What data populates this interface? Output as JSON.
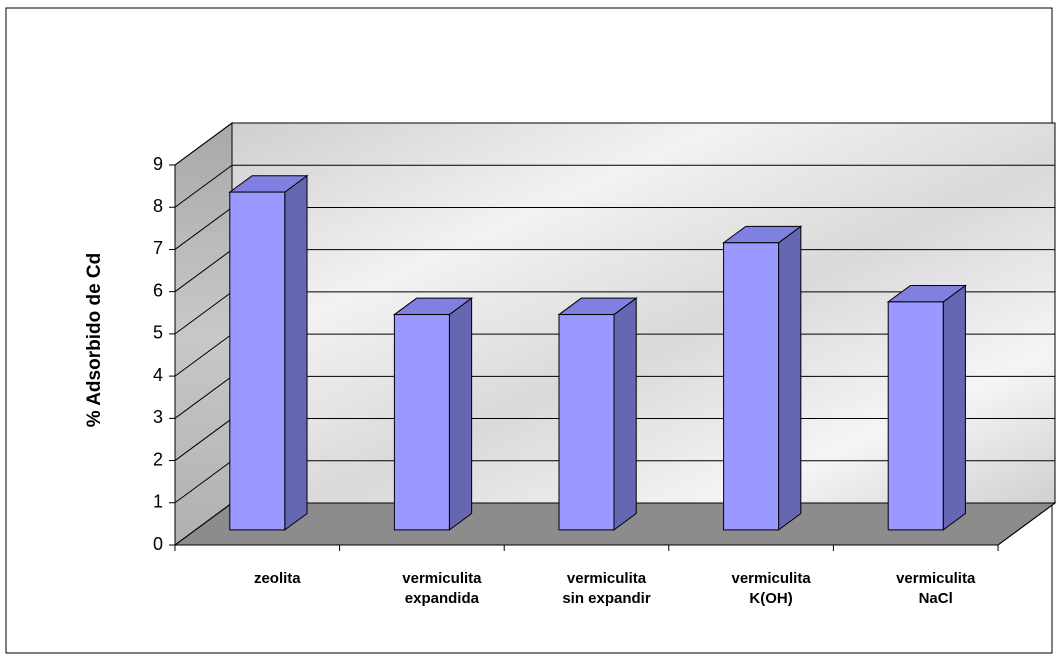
{
  "chart_data": {
    "type": "bar3d",
    "y_label": "% Adsorbido de Cd",
    "categories": [
      "zeolita",
      "vermiculita\nexpandida",
      "vermiculita\nsin expandir",
      "vermiculita\nK(OH)",
      "vermiculita\nNaCl"
    ],
    "values": [
      8.0,
      5.1,
      5.1,
      6.8,
      5.4
    ],
    "color": "#9999ff",
    "ylim": [
      0,
      9
    ],
    "yticks": [
      0,
      1,
      2,
      3,
      4,
      5,
      6,
      7,
      8,
      9
    ],
    "grid": true
  }
}
